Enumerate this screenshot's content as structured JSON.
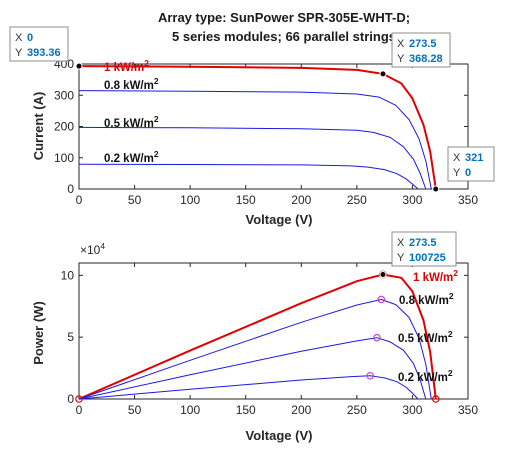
{
  "chart_data": [
    {
      "type": "line",
      "title": [
        "Array type: SunPower SPR-305E-WHT-D;",
        "5 series modules; 66 parallel strings"
      ],
      "xlabel": "Voltage (V)",
      "ylabel": "Current (A)",
      "xlim": [
        0,
        350
      ],
      "ylim": [
        0,
        400
      ],
      "xticks": [
        0,
        50,
        100,
        150,
        200,
        250,
        300,
        350
      ],
      "yticks": [
        0,
        100,
        200,
        300,
        400
      ],
      "grid": false,
      "series": [
        {
          "name": "1 kW/m2",
          "label": [
            "1 kW/m",
            "2"
          ],
          "color": "#e00000",
          "width": 2,
          "x": [
            0,
            100,
            200,
            250,
            273.5,
            290,
            300,
            310,
            316,
            321
          ],
          "y": [
            393.36,
            391.5,
            387.5,
            381,
            368.28,
            338,
            290,
            205,
            120,
            0
          ]
        },
        {
          "name": "0.8 kW/m2",
          "label": [
            "0.8 kW/m",
            "2"
          ],
          "color": "#1a1ae6",
          "width": 1,
          "x": [
            0,
            100,
            200,
            250,
            270,
            285,
            297,
            306,
            312,
            317
          ],
          "y": [
            315,
            313,
            310,
            304,
            294,
            268,
            222,
            160,
            90,
            0
          ]
        },
        {
          "name": "0.5 kW/m2",
          "label": [
            "0.5 kW/m",
            "2"
          ],
          "color": "#1a1ae6",
          "width": 1,
          "x": [
            0,
            100,
            200,
            250,
            265,
            280,
            292,
            301,
            307,
            312
          ],
          "y": [
            197,
            196,
            193,
            188,
            181,
            165,
            135,
            95,
            50,
            0
          ]
        },
        {
          "name": "0.2 kW/m2",
          "label": [
            "0.2 kW/m",
            "2"
          ],
          "color": "#1a1ae6",
          "width": 1,
          "x": [
            0,
            100,
            200,
            245,
            260,
            275,
            286,
            294,
            300,
            305
          ],
          "y": [
            79,
            78.5,
            77,
            74,
            70,
            62,
            49,
            33,
            16,
            0
          ]
        }
      ],
      "datatips": [
        {
          "x_label": "X",
          "y_label": "Y",
          "x": "0",
          "y": "393.36"
        },
        {
          "x_label": "X",
          "y_label": "Y",
          "x": "273.5",
          "y": "368.28"
        },
        {
          "x_label": "X",
          "y_label": "Y",
          "x": "321",
          "y": "0"
        }
      ]
    },
    {
      "type": "line",
      "xlabel": "Voltage (V)",
      "ylabel": "Power (W)",
      "xlim": [
        0,
        350
      ],
      "ylim": [
        0,
        110000
      ],
      "xticks": [
        0,
        50,
        100,
        150,
        200,
        250,
        300,
        350
      ],
      "yticks": [
        0,
        50000,
        100000
      ],
      "ytick_labels": [
        "0",
        "5",
        "10"
      ],
      "exponent_label": [
        "×10",
        "4"
      ],
      "grid": false,
      "series": [
        {
          "name": "1 kW/m2",
          "label": [
            "1 kW/m",
            "2"
          ],
          "color": "#e00000",
          "width": 2,
          "x": [
            0,
            100,
            200,
            250,
            273.5,
            290,
            300,
            310,
            316,
            321
          ],
          "y": [
            0,
            39150,
            77500,
            95250,
            100725,
            98020,
            87000,
            63550,
            37920,
            0
          ]
        },
        {
          "name": "0.8 kW/m2",
          "label": [
            "0.8 kW/m",
            "2"
          ],
          "color": "#1a1ae6",
          "width": 1,
          "x": [
            0,
            100,
            200,
            250,
            272,
            285,
            297,
            306,
            312,
            317
          ],
          "y": [
            0,
            31300,
            62000,
            76000,
            80500,
            76380,
            65930,
            48960,
            28080,
            0
          ]
        },
        {
          "name": "0.5 kW/m2",
          "label": [
            "0.5 kW/m",
            "2"
          ],
          "color": "#1a1ae6",
          "width": 1,
          "x": [
            0,
            100,
            200,
            250,
            268,
            280,
            292,
            301,
            307,
            312
          ],
          "y": [
            0,
            19600,
            38600,
            47000,
            49600,
            46200,
            39420,
            28600,
            15350,
            0
          ]
        },
        {
          "name": "0.2 kW/m2",
          "label": [
            "0.2 kW/m",
            "2"
          ],
          "color": "#1a1ae6",
          "width": 1,
          "x": [
            0,
            100,
            200,
            245,
            262,
            275,
            286,
            294,
            300,
            305
          ],
          "y": [
            0,
            7850,
            15400,
            18130,
            18800,
            17050,
            14010,
            9700,
            4800,
            0
          ]
        }
      ],
      "markers": [
        {
          "x": 0,
          "y": 0,
          "color": "#e00000"
        },
        {
          "x": 273.5,
          "y": 100725,
          "color": "#e00000"
        },
        {
          "x": 272,
          "y": 80500,
          "color": "#cc44cc"
        },
        {
          "x": 268,
          "y": 49600,
          "color": "#cc44cc"
        },
        {
          "x": 262,
          "y": 18800,
          "color": "#cc44cc"
        },
        {
          "x": 321,
          "y": 0,
          "color": "#e00000"
        }
      ],
      "datatips": [
        {
          "x_label": "X",
          "y_label": "Y",
          "x": "273.5",
          "y": "100725"
        }
      ]
    }
  ]
}
